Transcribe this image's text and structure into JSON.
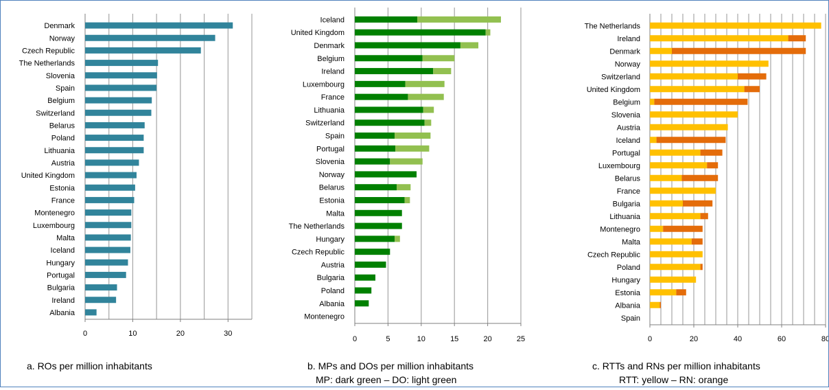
{
  "colors": {
    "ro": "#31849b",
    "mp": "#008000",
    "do": "#92c050",
    "rtt": "#ffc000",
    "rn": "#e46c0a",
    "grid": "#a6a6a6",
    "axis": "#7f7f7f",
    "border": "#4f81bd"
  },
  "chart_data": [
    {
      "type": "bar",
      "orientation": "horizontal",
      "caption": "a.  ROs per million inhabitants",
      "caption2": "",
      "xlim": [
        0,
        35
      ],
      "xticks": [
        0,
        10,
        20,
        30
      ],
      "grid": true,
      "categories": [
        "Denmark",
        "Norway",
        "Czech Republic",
        "The Netherlands",
        "Slovenia",
        "Spain",
        "Belgium",
        "Switzerland",
        "Belarus",
        "Poland",
        "Lithuania",
        "Austria",
        "United Kingdom",
        "Estonia",
        "France",
        "Montenegro",
        "Luxembourg",
        "Malta",
        "Iceland",
        "Hungary",
        "Portugal",
        "Bulgaria",
        "Ireland",
        "Albania"
      ],
      "series": [
        {
          "name": "",
          "color_key": "ro",
          "values": [
            31.0,
            27.3,
            24.3,
            15.3,
            15.1,
            15.0,
            14.0,
            13.9,
            12.5,
            12.3,
            12.3,
            11.3,
            10.8,
            10.5,
            10.3,
            9.7,
            9.7,
            9.6,
            9.5,
            9.0,
            8.6,
            6.7,
            6.5,
            2.4
          ]
        }
      ]
    },
    {
      "type": "bar",
      "orientation": "horizontal",
      "stacked": true,
      "caption": "b. MPs and DOs per million inhabitants",
      "caption2": "MP: dark green – DO: light green",
      "xlim": [
        0,
        25
      ],
      "xticks": [
        0,
        5,
        10,
        15,
        20,
        25
      ],
      "grid": true,
      "categories": [
        "Iceland",
        "United Kingdom",
        "Denmark",
        "Belgium",
        "Ireland",
        "Luxembourg",
        "France",
        "Lithuania",
        "Switzerland",
        "Spain",
        "Portugal",
        "Slovenia",
        "Norway",
        "Belarus",
        "Estonia",
        "Malta",
        "The Netherlands",
        "Hungary",
        "Czech Republic",
        "Austria",
        "Bulgaria",
        "Poland",
        "Albania",
        "Montenegro"
      ],
      "series": [
        {
          "name": "MP",
          "color_key": "mp",
          "values": [
            9.4,
            19.7,
            15.9,
            10.2,
            11.8,
            7.6,
            8.0,
            10.3,
            10.5,
            6.0,
            6.1,
            5.3,
            9.3,
            6.3,
            7.5,
            7.1,
            7.1,
            6.0,
            5.3,
            4.7,
            3.1,
            2.5,
            2.1,
            0
          ]
        },
        {
          "name": "DO",
          "color_key": "do",
          "values": [
            12.6,
            0.7,
            2.7,
            4.8,
            2.7,
            5.9,
            5.4,
            1.6,
            1.0,
            5.4,
            5.1,
            4.9,
            0,
            2.1,
            0.8,
            0,
            0,
            0.8,
            0,
            0,
            0,
            0,
            0,
            0
          ]
        }
      ]
    },
    {
      "type": "bar",
      "orientation": "horizontal",
      "stacked": true,
      "caption": "c. RTTs and RNs per million inhabitants",
      "caption2": "RTT: yellow – RN: orange",
      "xlim": [
        0,
        80
      ],
      "xticks": [
        0,
        20,
        40,
        60,
        80
      ],
      "xtick_labels": [
        "0",
        "20",
        "40",
        "60",
        "80"
      ],
      "grid": true,
      "categories": [
        "The Netherlands",
        "Ireland",
        "Denmark",
        "Norway",
        "Switzerland",
        "United Kingdom",
        "Belgium",
        "Slovenia",
        "Austria",
        "Iceland",
        "Portugal",
        "Luxembourg",
        "Belarus",
        "France",
        "Bulgaria",
        "Lithuania",
        "Montenegro",
        "Malta",
        "Czech Republic",
        "Poland",
        "Hungary",
        "Estonia",
        "Albania",
        "Spain"
      ],
      "series": [
        {
          "name": "RTT",
          "color_key": "rtt",
          "values": [
            78,
            63,
            10,
            54,
            40,
            43,
            2,
            40,
            35.5,
            3,
            23,
            26,
            14.5,
            30,
            15,
            23,
            6,
            19,
            24,
            23,
            21,
            12,
            4.5,
            0
          ]
        },
        {
          "name": "RN",
          "color_key": "rn",
          "values": [
            0,
            8,
            61,
            0,
            13,
            7,
            42.5,
            0,
            0,
            31.5,
            10,
            5,
            16.5,
            0,
            13.5,
            3.5,
            18,
            5,
            0,
            1,
            0,
            4.5,
            0.5,
            0
          ]
        }
      ]
    }
  ]
}
